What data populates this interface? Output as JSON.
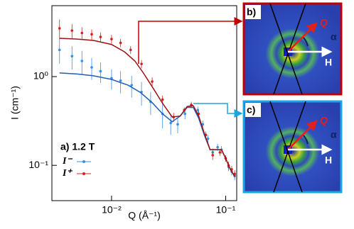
{
  "chart_data": {
    "type": "scatter",
    "log_x": true,
    "log_y": true,
    "xlabel": "Q (Å⁻¹)",
    "ylabel": "I (cm⁻¹)",
    "annotation": "a) 1.2 T",
    "xlim": [
      0.003,
      0.125
    ],
    "ylim": [
      0.04,
      6.3
    ],
    "xticks": [
      {
        "value": 0.01,
        "label": "10⁻²"
      },
      {
        "value": 0.1,
        "label": "10⁻¹"
      }
    ],
    "yticks": [
      {
        "value": 0.1,
        "label": "10⁻¹"
      },
      {
        "value": 1,
        "label": "10⁰"
      }
    ],
    "series": [
      {
        "name": "I⁻",
        "color": "#3a8ee6",
        "x": [
          0.0035,
          0.0045,
          0.0055,
          0.0067,
          0.008,
          0.01,
          0.012,
          0.015,
          0.0183,
          0.022,
          0.028,
          0.033,
          0.038,
          0.044,
          0.05,
          0.057,
          0.063,
          0.07,
          0.077,
          0.085,
          0.092,
          0.1,
          0.106,
          0.113,
          0.12
        ],
        "values": [
          2.0,
          1.7,
          1.5,
          1.27,
          1.15,
          0.96,
          0.9,
          0.8,
          0.67,
          0.52,
          0.38,
          0.3,
          0.29,
          0.38,
          0.48,
          0.42,
          0.29,
          0.2,
          0.14,
          0.16,
          0.15,
          0.12,
          0.096,
          0.085,
          0.076
        ],
        "errors": [
          0.6,
          0.5,
          0.45,
          0.35,
          0.3,
          0.25,
          0.25,
          0.22,
          0.2,
          0.15,
          0.12,
          0.08,
          0.06,
          0.05,
          0.04,
          0.04,
          0.03,
          0.02,
          0.015,
          0.015,
          0.015,
          0.01,
          0.01,
          0.008,
          0.008
        ]
      },
      {
        "name": "I⁺",
        "color": "#d62020",
        "x": [
          0.0035,
          0.0045,
          0.0055,
          0.0067,
          0.008,
          0.01,
          0.012,
          0.0147,
          0.0183,
          0.0227,
          0.028,
          0.035,
          0.0434,
          0.05,
          0.058,
          0.067,
          0.077,
          0.089,
          0.1,
          0.106,
          0.113,
          0.12
        ],
        "values": [
          3.5,
          3.3,
          3.1,
          3.0,
          2.8,
          2.65,
          2.4,
          2.0,
          1.39,
          0.88,
          0.55,
          0.35,
          0.42,
          0.48,
          0.38,
          0.22,
          0.13,
          0.14,
          0.12,
          0.1,
          0.09,
          0.08
        ],
        "errors": [
          0.9,
          0.6,
          0.5,
          0.4,
          0.35,
          0.3,
          0.25,
          0.2,
          0.15,
          0.1,
          0.06,
          0.04,
          0.03,
          0.03,
          0.03,
          0.02,
          0.015,
          0.012,
          0.01,
          0.01,
          0.008,
          0.008
        ]
      },
      {
        "color": "#1f5fb8",
        "style": "line",
        "x": [
          0.0035,
          0.005,
          0.007,
          0.01,
          0.014,
          0.018,
          0.023,
          0.028,
          0.034,
          0.04,
          0.046,
          0.052,
          0.058,
          0.065,
          0.073,
          0.082,
          0.092,
          0.1,
          0.11,
          0.12
        ],
        "values": [
          1.1,
          1.07,
          1.02,
          0.93,
          0.8,
          0.66,
          0.5,
          0.38,
          0.31,
          0.36,
          0.45,
          0.45,
          0.34,
          0.22,
          0.15,
          0.15,
          0.15,
          0.12,
          0.09,
          0.075
        ]
      },
      {
        "color": "#a01010",
        "style": "line",
        "x": [
          0.0035,
          0.005,
          0.007,
          0.01,
          0.013,
          0.016,
          0.019,
          0.023,
          0.028,
          0.034,
          0.04,
          0.046,
          0.052,
          0.058,
          0.065,
          0.073,
          0.082,
          0.092,
          0.1,
          0.11,
          0.12
        ],
        "values": [
          2.7,
          2.65,
          2.55,
          2.3,
          1.9,
          1.5,
          1.1,
          0.75,
          0.5,
          0.35,
          0.36,
          0.46,
          0.47,
          0.36,
          0.23,
          0.15,
          0.15,
          0.15,
          0.12,
          0.09,
          0.075
        ]
      }
    ]
  },
  "panels": [
    {
      "label": "b)",
      "q": "Q",
      "alpha": "α",
      "h": "H"
    },
    {
      "label": "c)",
      "q": "Q",
      "alpha": "α",
      "h": "H"
    }
  ]
}
